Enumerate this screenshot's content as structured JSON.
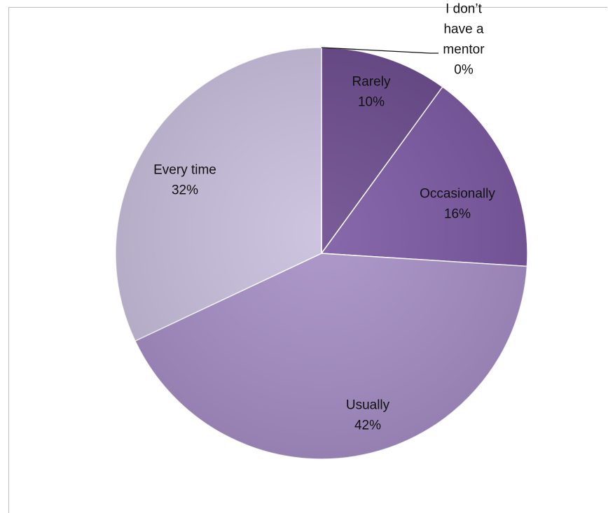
{
  "chart_data": {
    "type": "pie",
    "title": "",
    "slices": [
      {
        "name": "I don’t have a mentor",
        "label_lines": [
          "I don’t",
          "have a",
          "mentor"
        ],
        "value": 0,
        "percent_label": "0%",
        "color": "#5a3a78"
      },
      {
        "name": "Rarely",
        "label_lines": [
          "Rarely"
        ],
        "value": 10,
        "percent_label": "10%",
        "color": "#6a4a8c"
      },
      {
        "name": "Occasionally",
        "label_lines": [
          "Occasionally"
        ],
        "value": 16,
        "percent_label": "16%",
        "color": "#7a58a2"
      },
      {
        "name": "Usually",
        "label_lines": [
          "Usually"
        ],
        "value": 42,
        "percent_label": "42%",
        "color": "#a68ec6"
      },
      {
        "name": "Every time",
        "label_lines": [
          "Every time"
        ],
        "value": 32,
        "percent_label": "32%",
        "color": "#c8bedc"
      }
    ],
    "start": "12 o'clock",
    "direction": "clockwise",
    "legend": "none"
  }
}
